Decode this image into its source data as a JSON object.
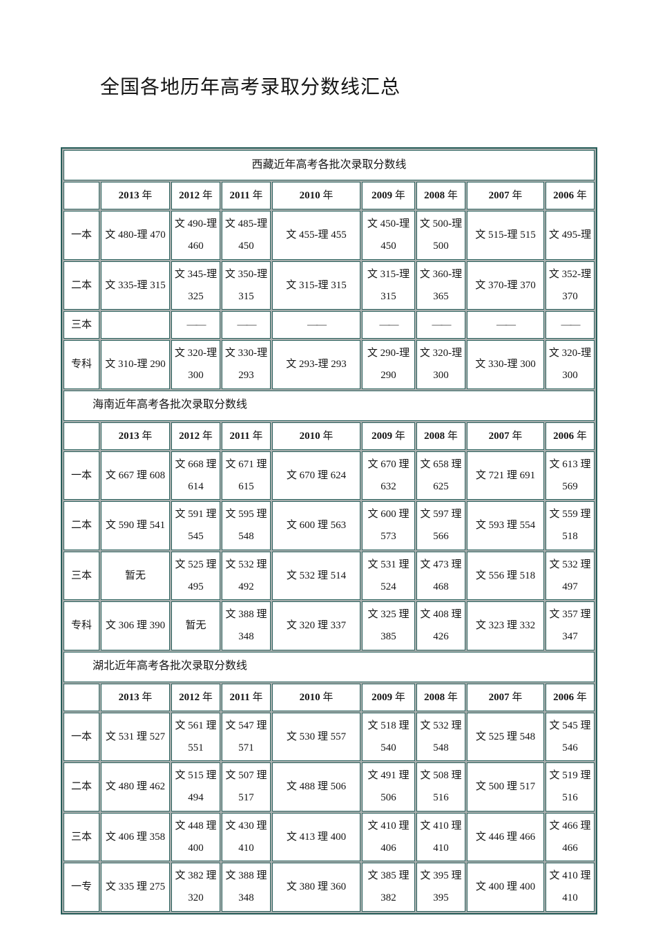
{
  "page_title": "全国各地历年高考录取分数线汇总",
  "colors": {
    "table_border_teal": "#2c615d",
    "grid_shadow_gray": "#a9afae",
    "text": "#141414"
  },
  "years": [
    {
      "num": "2013",
      "suffix": "年"
    },
    {
      "num": "2012",
      "suffix": "年"
    },
    {
      "num": "2011",
      "suffix": "年"
    },
    {
      "num": "2010",
      "suffix": "年"
    },
    {
      "num": "2009",
      "suffix": "年"
    },
    {
      "num": "2008",
      "suffix": "年"
    },
    {
      "num": "2007",
      "suffix": "年"
    },
    {
      "num": "2006",
      "suffix": "年"
    }
  ],
  "tables": [
    {
      "title": "西藏近年高考各批次录取分数线",
      "title_align": "center",
      "rows": [
        {
          "label": "一本",
          "values": [
            "文 480-理 470",
            "文 490-理 460",
            "文 485-理 450",
            "文 455-理 455",
            "文 450-理 450",
            "文 500-理 500",
            "文 515-理 515",
            "文 495-理"
          ]
        },
        {
          "label": "二本",
          "values": [
            "文 335-理 315",
            "文 345-理 325",
            "文 350-理 315",
            "文 315-理 315",
            "文 315-理 315",
            "文 360-理 365",
            "文 370-理 370",
            "文 352-理 370"
          ]
        },
        {
          "label": "三本",
          "values": [
            "",
            "——",
            "——",
            "——",
            "——",
            "——",
            "——",
            "——"
          ]
        },
        {
          "label": "专科",
          "values": [
            "文 310-理 290",
            "文 320-理 300",
            "文 330-理 293",
            "文 293-理 293",
            "文 290-理 290",
            "文 320-理 300",
            "文 330-理 300",
            "文 320-理 300"
          ]
        }
      ]
    },
    {
      "title": "海南近年高考各批次录取分数线",
      "title_align": "left",
      "rows": [
        {
          "label": "一本",
          "values": [
            "文 667 理 608",
            "文 668 理 614",
            "文 671 理 615",
            "文 670 理 624",
            "文 670 理 632",
            "文 658 理 625",
            "文 721 理 691",
            "文 613 理 569"
          ]
        },
        {
          "label": "二本",
          "values": [
            "文 590 理 541",
            "文 591 理 545",
            "文 595 理 548",
            "文 600 理 563",
            "文 600 理 573",
            "文 597 理 566",
            "文 593 理 554",
            "文 559 理 518"
          ]
        },
        {
          "label": "三本",
          "values": [
            "暂无",
            "文 525 理 495",
            "文 532 理 492",
            "文 532 理 514",
            "文 531 理 524",
            "文 473 理 468",
            "文 556 理 518",
            "文 532 理 497"
          ]
        },
        {
          "label": "专科",
          "values": [
            "文 306 理 390",
            "暂无",
            "文 388 理 348",
            "文 320 理 337",
            "文 325 理 385",
            "文 408 理 426",
            "文 323 理 332",
            "文 357 理 347"
          ]
        }
      ]
    },
    {
      "title": "湖北近年高考各批次录取分数线",
      "title_align": "left",
      "rows": [
        {
          "label": "一本",
          "values": [
            "文 531 理 527",
            "文 561 理 551",
            "文 547 理 571",
            "文 530 理 557",
            "文 518 理 540",
            "文 532 理 548",
            "文 525 理 548",
            "文 545 理 546"
          ]
        },
        {
          "label": "二本",
          "values": [
            "文 480 理 462",
            "文 515 理 494",
            "文 507 理 517",
            "文 488 理 506",
            "文 491 理 506",
            "文 508 理 516",
            "文 500 理 517",
            "文 519 理 516"
          ]
        },
        {
          "label": "三本",
          "values": [
            "文 406 理 358",
            "文 448 理 400",
            "文 430 理 410",
            "文 413 理 400",
            "文 410 理 406",
            "文 410 理 410",
            "文 446 理 466",
            "文 466 理 466"
          ]
        },
        {
          "label": "一专",
          "values": [
            "文 335 理 275",
            "文 382 理 320",
            "文 388 理 348",
            "文 380 理 360",
            "文 385 理 382",
            "文 395 理 395",
            "文 400 理 400",
            "文 410 理 410"
          ]
        }
      ]
    }
  ]
}
